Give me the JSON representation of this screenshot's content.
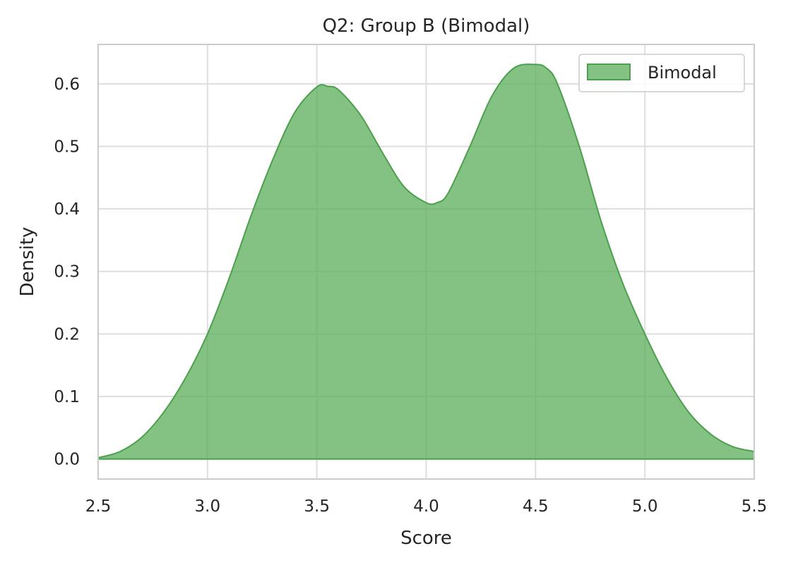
{
  "chart_data": {
    "type": "area",
    "title": "Q2: Group B (Bimodal)",
    "xlabel": "Score",
    "ylabel": "Density",
    "xlim": [
      2.5,
      5.5
    ],
    "ylim": [
      -0.032,
      0.663
    ],
    "xticks": [
      2.5,
      3.0,
      3.5,
      4.0,
      4.5,
      5.0,
      5.5
    ],
    "xtick_labels": [
      "2.5",
      "3.0",
      "3.5",
      "4.0",
      "4.5",
      "5.0",
      "5.5"
    ],
    "yticks": [
      0.0,
      0.1,
      0.2,
      0.3,
      0.4,
      0.5,
      0.6
    ],
    "ytick_labels": [
      "0.0",
      "0.1",
      "0.2",
      "0.3",
      "0.4",
      "0.5",
      "0.6"
    ],
    "grid": true,
    "legend_position": "top-right",
    "series": [
      {
        "name": "Bimodal",
        "color": "#4c9f4c",
        "fill_color": "#5aad5a",
        "x": [
          2.5,
          2.6,
          2.7,
          2.8,
          2.9,
          3.0,
          3.1,
          3.2,
          3.3,
          3.4,
          3.5,
          3.55,
          3.6,
          3.7,
          3.8,
          3.9,
          4.0,
          4.05,
          4.1,
          4.2,
          4.3,
          4.4,
          4.5,
          4.55,
          4.6,
          4.7,
          4.8,
          4.9,
          5.0,
          5.1,
          5.2,
          5.3,
          5.4,
          5.5
        ],
        "y": [
          0.002,
          0.012,
          0.035,
          0.075,
          0.13,
          0.2,
          0.29,
          0.39,
          0.48,
          0.555,
          0.595,
          0.596,
          0.59,
          0.55,
          0.49,
          0.435,
          0.41,
          0.41,
          0.425,
          0.5,
          0.58,
          0.625,
          0.631,
          0.625,
          0.6,
          0.5,
          0.38,
          0.28,
          0.2,
          0.13,
          0.075,
          0.04,
          0.02,
          0.012
        ]
      }
    ]
  }
}
